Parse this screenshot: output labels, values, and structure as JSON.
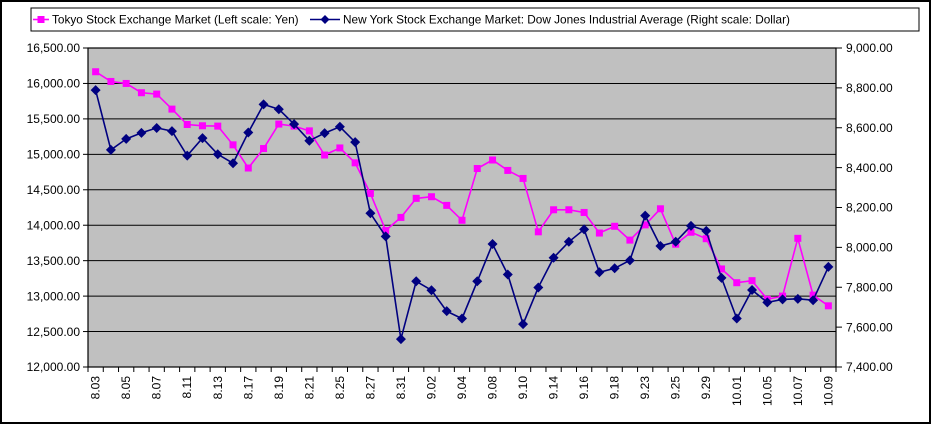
{
  "legend": {
    "items": [
      {
        "label": "Tokyo Stock Exchange Market (Left scale: Yen)",
        "marker": "square",
        "color": "#FF00FF"
      },
      {
        "label": "New York Stock Exchange Market: Dow Jones Industrial Average (Right scale: Dollar)",
        "marker": "diamond",
        "color": "#000080"
      }
    ]
  },
  "chart_data": {
    "type": "line",
    "plot_bg": "#C0C0C0",
    "grid": true,
    "legend_position": "top",
    "n_points": 49,
    "label_interval": 2,
    "x_tick_labels": [
      "8.03",
      "8.05",
      "8.07",
      "8.11",
      "8.13",
      "8.17",
      "8.19",
      "8.21",
      "8.25",
      "8.27",
      "8.31",
      "9.02",
      "9.04",
      "9.08",
      "9.10",
      "9.14",
      "9.16",
      "9.18",
      "9.23",
      "9.25",
      "9.29",
      "10.01",
      "10.05",
      "10.07",
      "10.09"
    ],
    "left_axis": {
      "title": "Yen",
      "min": 12000,
      "max": 16500,
      "step": 500,
      "ticks": [
        "16,500.00",
        "16,000.00",
        "15,500.00",
        "15,000.00",
        "14,500.00",
        "14,000.00",
        "13,500.00",
        "13,000.00",
        "12,500.00",
        "12,000.00"
      ]
    },
    "right_axis": {
      "title": "Dollar",
      "min": 7400,
      "max": 9000,
      "step": 200,
      "ticks": [
        "9,000.00",
        "8,800.00",
        "8,600.00",
        "8,400.00",
        "8,200.00",
        "8,000.00",
        "7,800.00",
        "7,600.00",
        "7,400.00"
      ]
    },
    "series": [
      {
        "name": "Tokyo Stock Exchange Market (Left scale: Yen)",
        "axis": "left",
        "color": "#FF00FF",
        "marker": "square",
        "values": [
          16165,
          16028,
          16000,
          15869,
          15850,
          15638,
          15421,
          15403,
          15398,
          15134,
          14807,
          15082,
          15427,
          15398,
          15331,
          14990,
          15090,
          14880,
          14448,
          13925,
          14110,
          14379,
          14402,
          14280,
          14070,
          14800,
          14920,
          14773,
          14660,
          13907,
          14218,
          14218,
          14180,
          13890,
          13985,
          13790,
          14005,
          14232,
          13732,
          13901,
          13810,
          13383,
          13189,
          13218,
          12955,
          13000,
          13815,
          13014,
          12863
        ]
      },
      {
        "name": "New York Stock Exchange Market: Dow Jones Industrial Average (Right scale: Dollar)",
        "axis": "right",
        "color": "#000080",
        "marker": "diamond",
        "values": [
          8789,
          8489,
          8544,
          8574,
          8599,
          8583,
          8460,
          8548,
          8467,
          8422,
          8576,
          8717,
          8693,
          8618,
          8535,
          8573,
          8605,
          8528,
          8171,
          8055,
          7540,
          7830,
          7785,
          7680,
          7643,
          7830,
          8017,
          7864,
          7615,
          7799,
          7948,
          8028,
          8090,
          7875,
          7895,
          7935,
          8159,
          8007,
          8028,
          8108,
          8083,
          7847,
          7643,
          7786,
          7724,
          7739,
          7742,
          7735,
          7902
        ]
      }
    ]
  }
}
